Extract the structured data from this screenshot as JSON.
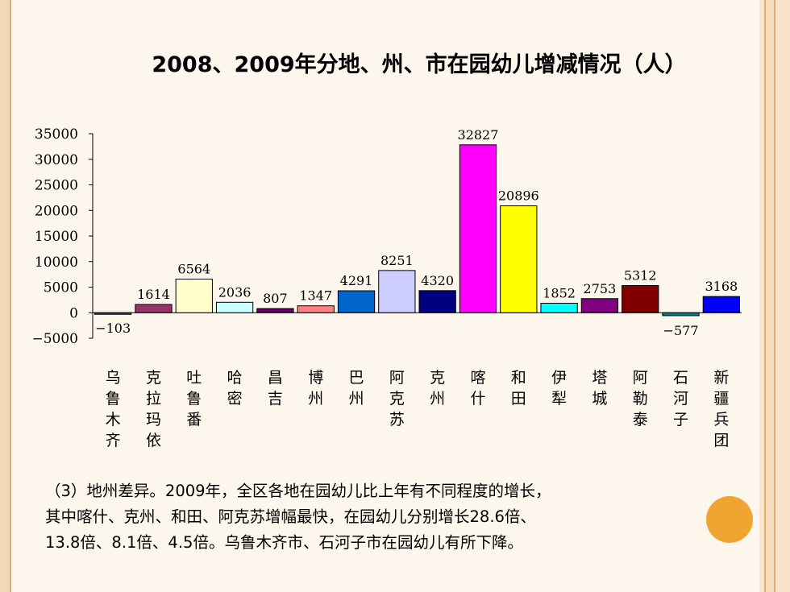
{
  "title": "2008、2009年分地、州、市在园幼儿增减情况（人）",
  "chart_data": {
    "type": "bar",
    "title": "2008、2009年分地、州、市在园幼儿增减情况（人）",
    "ylim": [
      -5000,
      35000
    ],
    "yticks": [
      35000,
      30000,
      25000,
      20000,
      15000,
      10000,
      5000,
      0,
      -5000
    ],
    "grid": false,
    "categories": [
      "乌鲁木齐",
      "克拉玛依",
      "吐鲁番",
      "哈密",
      "昌吉",
      "博州",
      "巴州",
      "阿克苏",
      "克州",
      "喀什",
      "和田",
      "伊犁",
      "塔城",
      "阿勒泰",
      "石河子",
      "新疆兵团"
    ],
    "values": [
      -103,
      1614,
      6564,
      2036,
      807,
      1347,
      4291,
      8251,
      4320,
      32827,
      20896,
      1852,
      2753,
      5312,
      -577,
      3168
    ],
    "colors": [
      "#3f3f8f",
      "#993366",
      "#ffffcc",
      "#ccffff",
      "#660066",
      "#ff8080",
      "#0066cc",
      "#ccccff",
      "#000080",
      "#ff00ff",
      "#ffff00",
      "#00ffff",
      "#800080",
      "#800000",
      "#008080",
      "#0000ff"
    ]
  },
  "body": {
    "line1": "（3）地州差异。2009年，全区各地在园幼儿比上年有不同程度的增长，",
    "line2": "其中喀什、克州、和田、阿克苏增幅最快，在园幼儿分别增长28.6倍、",
    "line3": "13.8倍、8.1倍、4.5倍。乌鲁木齐市、石河子市在园幼儿有所下降。"
  }
}
